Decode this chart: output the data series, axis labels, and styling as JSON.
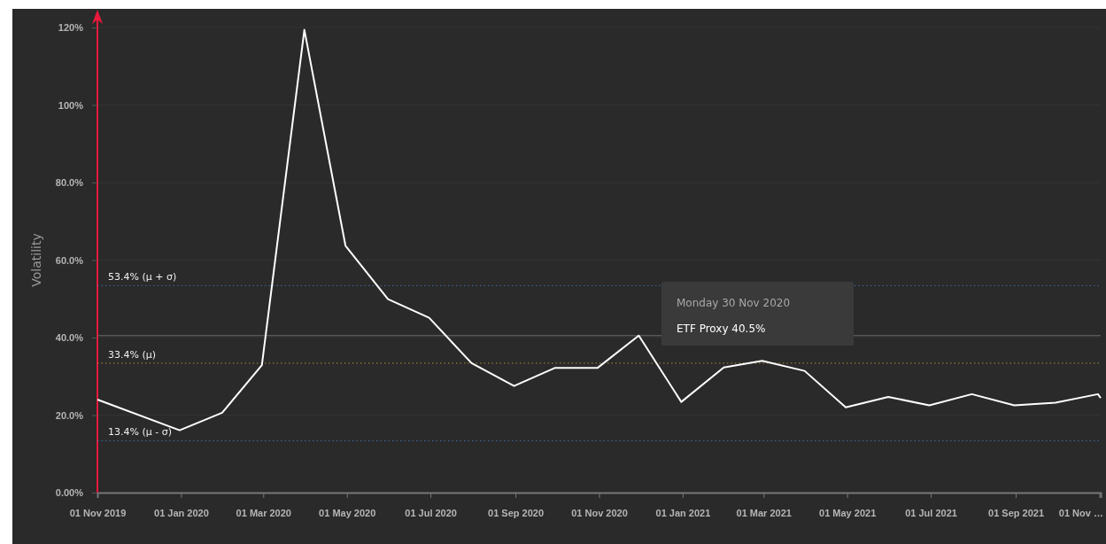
{
  "chart_data": {
    "type": "line",
    "ylabel": "Volatility",
    "x": [
      "2019-11-01",
      "2019-12-31",
      "2020-01-31",
      "2020-02-29",
      "2020-03-31",
      "2020-04-30",
      "2020-05-31",
      "2020-06-30",
      "2020-07-31",
      "2020-08-31",
      "2020-09-30",
      "2020-10-31",
      "2020-11-30",
      "2020-12-31",
      "2021-01-31",
      "2021-02-28",
      "2021-03-31",
      "2021-04-30",
      "2021-05-31",
      "2021-06-30",
      "2021-07-31",
      "2021-08-31",
      "2021-09-30",
      "2021-10-31",
      "2021-11-02"
    ],
    "series": [
      {
        "color": "#ffffff",
        "values": [
          24.0,
          16.1,
          20.6,
          32.9,
          119.4,
          63.7,
          49.9,
          45.1,
          33.4,
          27.5,
          32.2,
          32.2,
          40.5,
          23.4,
          32.3,
          34.0,
          31.4,
          22.0,
          24.7,
          22.5,
          25.4,
          22.5,
          23.2,
          25.4,
          24.4
        ]
      }
    ],
    "xlim": [
      "2019-11-01",
      "2021-11-02"
    ],
    "xticks": [
      {
        "value": "2019-11-01",
        "label": "01 Nov 2019"
      },
      {
        "value": "2020-01-01",
        "label": "01 Jan 2020"
      },
      {
        "value": "2020-03-01",
        "label": "01 Mar 2020"
      },
      {
        "value": "2020-05-01",
        "label": "01 May 2020"
      },
      {
        "value": "2020-07-01",
        "label": "01 Jul 2020"
      },
      {
        "value": "2020-09-01",
        "label": "01 Sep 2020"
      },
      {
        "value": "2020-11-01",
        "label": "01 Nov 2020"
      },
      {
        "value": "2021-01-01",
        "label": "01 Jan 2021"
      },
      {
        "value": "2021-03-01",
        "label": "01 Mar 2021"
      },
      {
        "value": "2021-05-01",
        "label": "01 May 2021"
      },
      {
        "value": "2021-07-01",
        "label": "01 Jul 2021"
      },
      {
        "value": "2021-09-01",
        "label": "01 Sep 2021"
      },
      {
        "value": "2021-11-01",
        "label": "01 Nov …"
      }
    ],
    "ylim": [
      0,
      120
    ],
    "yticks": [
      {
        "value": 0,
        "label": "0.00%"
      },
      {
        "value": 20,
        "label": "20.0%"
      },
      {
        "value": 40,
        "label": "40.0%"
      },
      {
        "value": 60,
        "label": "60.0%"
      },
      {
        "value": 80,
        "label": "80.0%"
      },
      {
        "value": 100,
        "label": "100%"
      },
      {
        "value": 120,
        "label": "120%"
      }
    ],
    "grid": "y",
    "marker": "none",
    "line_style": "solid",
    "ref_lines": [
      {
        "axis": "y",
        "value": 53.4,
        "label": "53.4% (μ + σ)",
        "color": "#3a6ea5",
        "line_style": "dotted"
      },
      {
        "axis": "y",
        "value": 33.4,
        "label": "33.4% (μ)",
        "color": "#b08a3e",
        "line_style": "dotted"
      },
      {
        "axis": "y",
        "value": 13.4,
        "label": "13.4% (μ - σ)",
        "color": "#3a6ea5",
        "line_style": "dotted"
      },
      {
        "axis": "y",
        "value": 40.5,
        "color": "#6e6e6e",
        "line_style": "solid"
      }
    ],
    "annotations": [
      "Monday 30 Nov 2020",
      "ETF Proxy 40.5%"
    ]
  }
}
